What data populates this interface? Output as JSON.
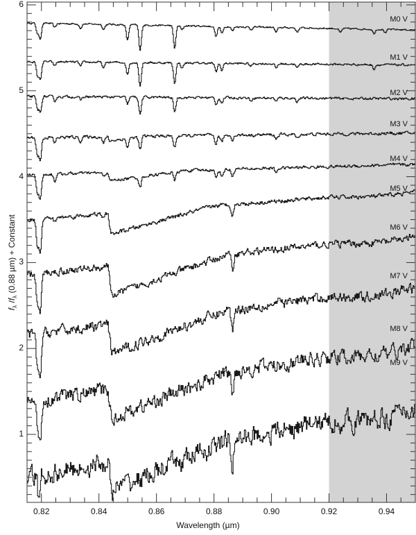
{
  "chart_data": {
    "type": "line",
    "title": "",
    "xlabel": "Wavelength (µm)",
    "ylabel": "fλ / fλ (0.88 µm) + Constant",
    "ylabel_parts": {
      "f1": "f",
      "sub1": "λ",
      "slash": " /",
      "f2": "f",
      "sub2": "λ",
      "rest": " (0.88 µm) + Constant"
    },
    "xlim": [
      0.815,
      0.95
    ],
    "ylim": [
      0.21,
      6.0
    ],
    "x_ticks": [
      "0.82",
      "0.84",
      "0.86",
      "0.88",
      "0.90",
      "0.92",
      "0.94"
    ],
    "x_tick_values": [
      0.82,
      0.84,
      0.86,
      0.88,
      0.9,
      0.92,
      0.94
    ],
    "y_ticks": [
      "1",
      "2",
      "3",
      "4",
      "5",
      "6"
    ],
    "y_tick_values": [
      1,
      2,
      3,
      4,
      5,
      6
    ],
    "grid": false,
    "shaded_region": {
      "x_start": 0.92,
      "x_end": 0.95,
      "color": "#d3d3d3"
    },
    "line_color": "#1a1a1a",
    "series": [
      {
        "name": "M0 V",
        "offset": 5.75,
        "label_y": 5.82,
        "features": [
          [
            0.8185,
            -0.12
          ],
          [
            0.8195,
            -0.17
          ],
          [
            0.8245,
            -0.05
          ],
          [
            0.8335,
            -0.05
          ],
          [
            0.8415,
            -0.06
          ],
          [
            0.8498,
            -0.18
          ],
          [
            0.8542,
            -0.3
          ],
          [
            0.8662,
            -0.26
          ],
          [
            0.8688,
            -0.05
          ],
          [
            0.8806,
            -0.12
          ],
          [
            0.8826,
            -0.08
          ],
          [
            0.8863,
            -0.05
          ],
          [
            0.8927,
            -0.03
          ],
          [
            0.9015,
            -0.06
          ],
          [
            0.9088,
            -0.05
          ],
          [
            0.9238,
            -0.05
          ],
          [
            0.9355,
            -0.05
          ],
          [
            0.9395,
            -0.04
          ]
        ],
        "slope": -0.6,
        "noise": 0.008,
        "bands": []
      },
      {
        "name": "M1 V",
        "offset": 5.32,
        "label_y": 5.38,
        "features": [
          [
            0.8185,
            -0.16
          ],
          [
            0.8195,
            -0.2
          ],
          [
            0.8245,
            -0.05
          ],
          [
            0.8335,
            -0.05
          ],
          [
            0.8415,
            -0.07
          ],
          [
            0.8498,
            -0.14
          ],
          [
            0.8542,
            -0.27
          ],
          [
            0.8662,
            -0.23
          ],
          [
            0.8688,
            -0.06
          ],
          [
            0.8806,
            -0.1
          ],
          [
            0.8826,
            -0.08
          ],
          [
            0.8927,
            -0.03
          ],
          [
            0.9015,
            -0.05
          ],
          [
            0.9088,
            -0.05
          ],
          [
            0.9355,
            -0.05
          ]
        ],
        "slope": -0.3,
        "noise": 0.01,
        "bands": []
      },
      {
        "name": "M2 V",
        "offset": 4.92,
        "label_y": 4.97,
        "features": [
          [
            0.8185,
            -0.14
          ],
          [
            0.8195,
            -0.18
          ],
          [
            0.8245,
            -0.05
          ],
          [
            0.8335,
            -0.04
          ],
          [
            0.8498,
            -0.08
          ],
          [
            0.8542,
            -0.2
          ],
          [
            0.8662,
            -0.17
          ],
          [
            0.8806,
            -0.08
          ],
          [
            0.8826,
            -0.06
          ],
          [
            0.8927,
            -0.03
          ],
          [
            0.9015,
            -0.04
          ],
          [
            0.9088,
            -0.04
          ]
        ],
        "slope": -0.2,
        "noise": 0.012,
        "bands": []
      },
      {
        "name": "M3 V",
        "offset": 4.48,
        "label_y": 4.6,
        "features": [
          [
            0.8185,
            -0.2
          ],
          [
            0.8195,
            -0.25
          ],
          [
            0.8245,
            -0.07
          ],
          [
            0.8335,
            -0.05
          ],
          [
            0.8415,
            -0.08
          ],
          [
            0.8498,
            -0.1
          ],
          [
            0.8542,
            -0.15
          ],
          [
            0.8662,
            -0.14
          ],
          [
            0.8806,
            -0.1
          ],
          [
            0.8826,
            -0.08
          ],
          [
            0.8863,
            -0.05
          ],
          [
            0.9015,
            -0.05
          ],
          [
            0.9088,
            -0.05
          ]
        ],
        "slope": 0.4,
        "noise": 0.015,
        "bands": [
          [
            0.843,
            0.856,
            -0.05
          ]
        ]
      },
      {
        "name": "M4 V",
        "offset": 4.08,
        "label_y": 4.2,
        "features": [
          [
            0.8185,
            -0.2
          ],
          [
            0.8195,
            -0.28
          ],
          [
            0.8245,
            -0.08
          ],
          [
            0.8415,
            -0.05
          ],
          [
            0.8542,
            -0.12
          ],
          [
            0.8662,
            -0.1
          ],
          [
            0.8806,
            -0.1
          ],
          [
            0.8826,
            -0.08
          ],
          [
            0.8863,
            -0.08
          ],
          [
            0.9015,
            -0.05
          ]
        ],
        "slope": 0.9,
        "noise": 0.015,
        "bands": [
          [
            0.843,
            0.87,
            -0.1
          ]
        ]
      },
      {
        "name": "M5 V",
        "offset": 3.66,
        "label_y": 3.85,
        "features": [
          [
            0.8185,
            -0.3
          ],
          [
            0.8195,
            -0.35
          ],
          [
            0.8245,
            -0.05
          ],
          [
            0.8415,
            -0.05
          ],
          [
            0.8863,
            -0.12
          ]
        ],
        "slope": 2.5,
        "noise": 0.02,
        "bands": [
          [
            0.843,
            0.88,
            -0.25
          ]
        ]
      },
      {
        "name": "M6 V",
        "offset": 3.08,
        "label_y": 3.4,
        "features": [
          [
            0.8185,
            -0.35
          ],
          [
            0.8195,
            -0.45
          ],
          [
            0.8863,
            -0.18
          ]
        ],
        "slope": 3.4,
        "noise": 0.035,
        "bands": [
          [
            0.843,
            0.885,
            -0.35
          ]
        ]
      },
      {
        "name": "M7 V",
        "offset": 2.43,
        "label_y": 2.83,
        "features": [
          [
            0.8185,
            -0.4
          ],
          [
            0.8195,
            -0.5
          ],
          [
            0.8863,
            -0.25
          ]
        ],
        "slope": 4.2,
        "noise": 0.05,
        "bands": [
          [
            0.843,
            0.885,
            -0.35
          ]
        ]
      },
      {
        "name": "M8 V",
        "offset": 1.7,
        "label_y": 2.22,
        "features": [
          [
            0.8185,
            -0.3
          ],
          [
            0.8195,
            -0.45
          ],
          [
            0.8863,
            -0.3
          ]
        ],
        "slope": 5.0,
        "noise": 0.07,
        "bands": [
          [
            0.843,
            0.885,
            -0.35
          ]
        ]
      },
      {
        "name": "M9 V",
        "offset": 0.9,
        "label_y": 1.82,
        "features": [
          [
            0.819,
            -0.3
          ],
          [
            0.8863,
            -0.3
          ]
        ],
        "slope": 6.2,
        "noise": 0.1,
        "bands": [
          [
            0.843,
            0.885,
            -0.35
          ]
        ]
      }
    ]
  }
}
